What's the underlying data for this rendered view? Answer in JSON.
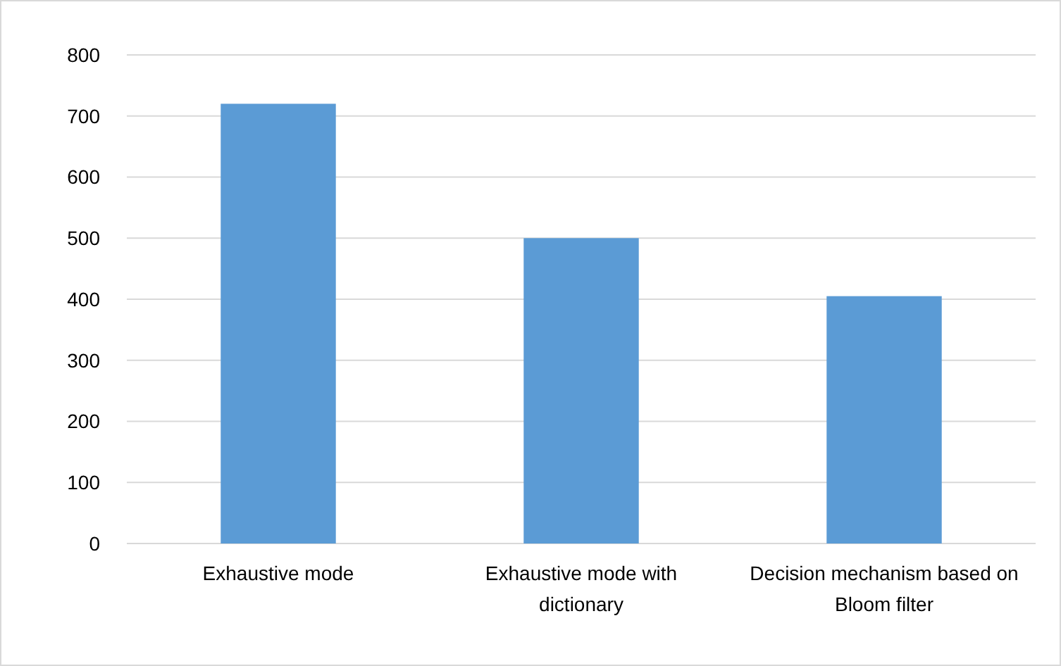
{
  "chart_data": {
    "type": "bar",
    "categories": [
      "Exhaustive mode",
      "Exhaustive mode with dictionary",
      "Decision mechanism based on Bloom filter"
    ],
    "values": [
      720,
      500,
      405
    ],
    "color": "#5b9bd5",
    "ylim": [
      0,
      800
    ],
    "yticks": [
      0,
      100,
      200,
      300,
      400,
      500,
      600,
      700,
      800
    ],
    "grid": "y"
  }
}
